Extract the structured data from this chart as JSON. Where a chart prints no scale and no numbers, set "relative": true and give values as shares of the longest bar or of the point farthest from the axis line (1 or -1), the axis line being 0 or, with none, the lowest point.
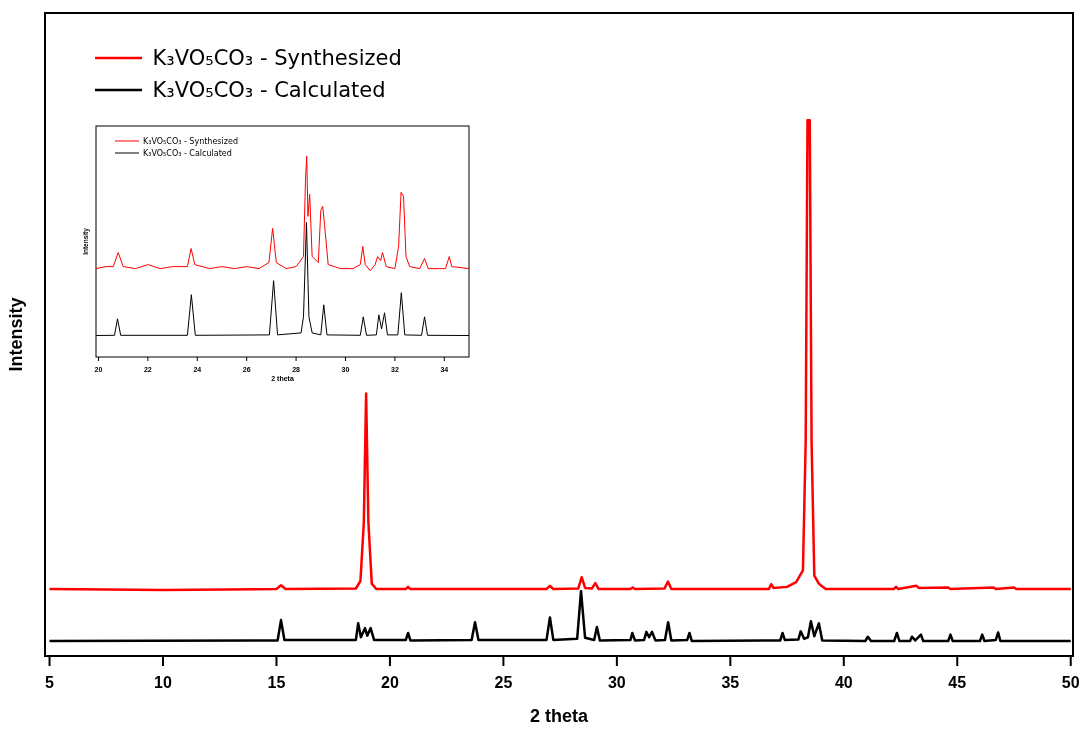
{
  "chart_data": [
    {
      "type": "line",
      "xlabel": "2 theta",
      "ylabel": "Intensity",
      "relative": true,
      "xlim": [
        4.8,
        50.1
      ],
      "xticks": [
        5,
        10,
        15,
        20,
        25,
        30,
        35,
        40,
        45,
        50
      ],
      "legend": "top left",
      "grid": false,
      "marker": "none",
      "line_style": "solid",
      "tick_labels": "x",
      "series": [
        {
          "name": "K₃VO₅CO₃ - Synthesized",
          "color": "#ff0000",
          "x": [
            5,
            10,
            15,
            15.2,
            15.4,
            18.5,
            18.7,
            18.85,
            18.95,
            19.05,
            19.2,
            19.4,
            20.7,
            20.8,
            20.9,
            26.9,
            27.05,
            27.2,
            28.3,
            28.45,
            28.6,
            28.9,
            29.05,
            29.2,
            30.6,
            30.7,
            30.8,
            32.1,
            32.25,
            32.4,
            36.7,
            36.8,
            36.9,
            37.5,
            37.9,
            38.2,
            38.32,
            38.4,
            38.5,
            38.58,
            38.7,
            38.9,
            39.2,
            42.2,
            42.3,
            42.4,
            43.2,
            43.3,
            44.6,
            44.7,
            46.6,
            46.7,
            47.5,
            47.6,
            50
          ],
          "values": [
            0.125,
            0.123,
            0.125,
            0.132,
            0.125,
            0.126,
            0.14,
            0.25,
            0.49,
            0.25,
            0.135,
            0.125,
            0.125,
            0.129,
            0.125,
            0.125,
            0.131,
            0.125,
            0.126,
            0.147,
            0.127,
            0.126,
            0.136,
            0.125,
            0.125,
            0.128,
            0.125,
            0.126,
            0.139,
            0.125,
            0.125,
            0.134,
            0.127,
            0.129,
            0.138,
            0.16,
            0.4,
            1.0,
            1.0,
            0.4,
            0.15,
            0.135,
            0.125,
            0.125,
            0.129,
            0.125,
            0.131,
            0.127,
            0.128,
            0.125,
            0.128,
            0.125,
            0.128,
            0.125,
            0.125
          ]
        },
        {
          "name": "K₃VO₅CO₃ - Calculated",
          "color": "#000000",
          "x": [
            5,
            15.05,
            15.2,
            15.35,
            18.5,
            18.6,
            18.72,
            18.9,
            19.0,
            19.15,
            19.3,
            20.7,
            20.8,
            20.9,
            23.6,
            23.75,
            23.9,
            26.9,
            27.05,
            27.2,
            28.25,
            28.42,
            28.6,
            29.0,
            29.12,
            29.25,
            30.6,
            30.68,
            30.8,
            31.2,
            31.3,
            31.42,
            31.55,
            31.7,
            32.12,
            32.26,
            32.4,
            33.1,
            33.2,
            33.3,
            37.2,
            37.3,
            37.4,
            38.0,
            38.1,
            38.25,
            38.42,
            38.55,
            38.7,
            38.9,
            39.05,
            40.95,
            41.06,
            41.2,
            42.22,
            42.34,
            42.45,
            42.92,
            43.0,
            43.15,
            43.4,
            43.5,
            44.6,
            44.7,
            44.8,
            46.0,
            46.1,
            46.2,
            46.7,
            46.8,
            46.9,
            50
          ],
          "values": [
            0.028,
            0.029,
            0.067,
            0.03,
            0.03,
            0.061,
            0.035,
            0.052,
            0.038,
            0.052,
            0.03,
            0.03,
            0.043,
            0.029,
            0.03,
            0.063,
            0.03,
            0.03,
            0.072,
            0.03,
            0.032,
            0.121,
            0.034,
            0.03,
            0.054,
            0.029,
            0.03,
            0.043,
            0.029,
            0.03,
            0.045,
            0.035,
            0.045,
            0.029,
            0.03,
            0.063,
            0.029,
            0.03,
            0.043,
            0.028,
            0.029,
            0.043,
            0.03,
            0.031,
            0.046,
            0.032,
            0.035,
            0.065,
            0.037,
            0.061,
            0.029,
            0.028,
            0.036,
            0.028,
            0.028,
            0.043,
            0.028,
            0.028,
            0.036,
            0.029,
            0.04,
            0.028,
            0.028,
            0.04,
            0.028,
            0.028,
            0.04,
            0.028,
            0.03,
            0.044,
            0.028,
            0.028
          ]
        }
      ]
    },
    {
      "type": "line",
      "xlabel": "2 theta",
      "ylabel": "Intensity",
      "relative": true,
      "xlim": [
        19.9,
        35
      ],
      "xticks": [
        20,
        22,
        24,
        26,
        28,
        30,
        32,
        34
      ],
      "legend": "top left",
      "grid": false,
      "marker": "none",
      "line_style": "solid",
      "tick_labels": "x",
      "series": [
        {
          "name": "K₃VO₅CO₃ - Synthesized",
          "color": "#ff0000",
          "x": [
            19.9,
            20.3,
            20.6,
            20.8,
            21.0,
            21.5,
            22.0,
            22.5,
            23.0,
            23.6,
            23.75,
            23.9,
            24.5,
            25.0,
            25.5,
            26.0,
            26.5,
            26.9,
            27.05,
            27.2,
            27.6,
            28.0,
            28.3,
            28.38,
            28.43,
            28.48,
            28.55,
            28.65,
            28.9,
            29.0,
            29.08,
            29.15,
            29.3,
            29.8,
            30.3,
            30.6,
            30.7,
            30.8,
            31.0,
            31.2,
            31.3,
            31.42,
            31.5,
            31.65,
            32.0,
            32.15,
            32.25,
            32.35,
            32.45,
            32.6,
            33.0,
            33.2,
            33.35,
            33.8,
            34.05,
            34.2,
            34.3,
            35
          ],
          "values": [
            0.44,
            0.45,
            0.45,
            0.52,
            0.45,
            0.44,
            0.46,
            0.44,
            0.45,
            0.45,
            0.54,
            0.46,
            0.44,
            0.45,
            0.44,
            0.45,
            0.44,
            0.47,
            0.64,
            0.47,
            0.44,
            0.45,
            0.5,
            0.88,
            1.0,
            0.7,
            0.81,
            0.5,
            0.47,
            0.73,
            0.75,
            0.66,
            0.46,
            0.44,
            0.44,
            0.46,
            0.55,
            0.46,
            0.43,
            0.46,
            0.5,
            0.48,
            0.52,
            0.45,
            0.44,
            0.55,
            0.82,
            0.8,
            0.5,
            0.45,
            0.44,
            0.49,
            0.44,
            0.44,
            0.44,
            0.5,
            0.45,
            0.44
          ]
        },
        {
          "name": "K₃VO₅CO₃ - Calculated",
          "color": "#000000",
          "x": [
            19.9,
            20.65,
            20.77,
            20.9,
            23.6,
            23.76,
            23.92,
            26.92,
            27.09,
            27.25,
            28.2,
            28.3,
            28.42,
            28.52,
            28.65,
            29.0,
            29.12,
            29.25,
            30.6,
            30.72,
            30.85,
            31.25,
            31.35,
            31.46,
            31.58,
            31.7,
            32.12,
            32.26,
            32.4,
            33.08,
            33.2,
            33.32,
            35
          ],
          "values": [
            0.107,
            0.108,
            0.19,
            0.108,
            0.108,
            0.31,
            0.108,
            0.11,
            0.38,
            0.11,
            0.12,
            0.2,
            0.67,
            0.2,
            0.12,
            0.11,
            0.26,
            0.11,
            0.108,
            0.2,
            0.108,
            0.11,
            0.21,
            0.14,
            0.22,
            0.11,
            0.11,
            0.32,
            0.11,
            0.108,
            0.2,
            0.108,
            0.107
          ]
        }
      ]
    }
  ]
}
